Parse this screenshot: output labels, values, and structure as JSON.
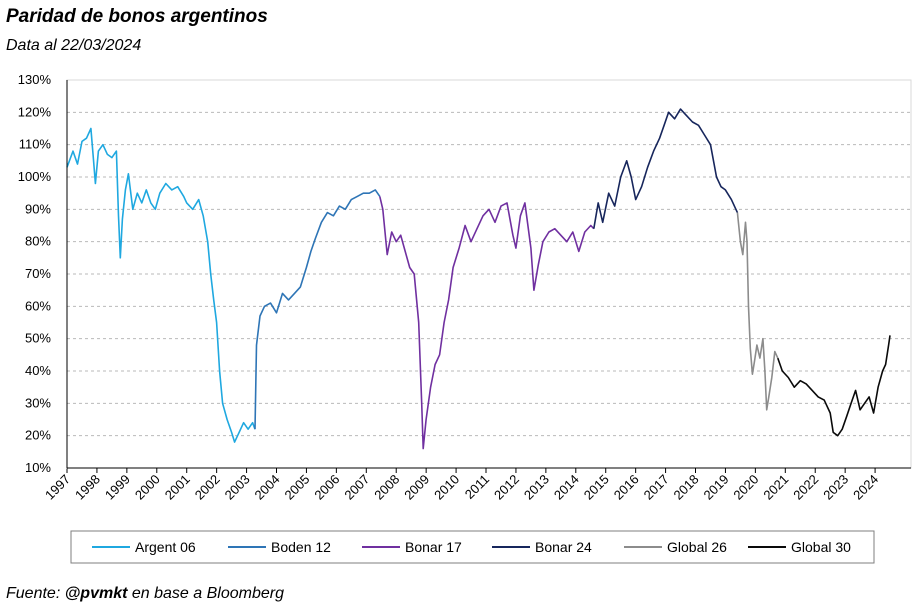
{
  "title": "Paridad de bonos argentinos",
  "subtitle": "Data al 22/03/2024",
  "footer": {
    "prefix": "Fuente: ",
    "handle": "@pvmkt",
    "suffix": "  en base a Bloomberg"
  },
  "chart_data": {
    "type": "line",
    "y_unit": "%",
    "ylim": [
      10,
      130
    ],
    "y_ticks": [
      "10%",
      "20%",
      "30%",
      "40%",
      "50%",
      "60%",
      "70%",
      "80%",
      "90%",
      "100%",
      "110%",
      "120%",
      "130%"
    ],
    "x_ticks": [
      "1997",
      "1998",
      "1999",
      "2000",
      "2001",
      "2002",
      "2003",
      "2004",
      "2005",
      "2006",
      "2007",
      "2008",
      "2009",
      "2010",
      "2011",
      "2012",
      "2013",
      "2014",
      "2015",
      "2016",
      "2017",
      "2018",
      "2019",
      "2020",
      "2021",
      "2022",
      "2023",
      "2024"
    ],
    "xlim": [
      1997.0,
      2025.2
    ],
    "grid": "horizontal-dashed",
    "legend": "bottom",
    "series": [
      {
        "name": "Argent 06",
        "color": "#1fa8e0",
        "points": [
          [
            1997.0,
            103
          ],
          [
            1997.2,
            108
          ],
          [
            1997.35,
            104
          ],
          [
            1997.5,
            111
          ],
          [
            1997.65,
            112
          ],
          [
            1997.8,
            115
          ],
          [
            1997.88,
            106
          ],
          [
            1997.95,
            98
          ],
          [
            1998.05,
            108
          ],
          [
            1998.2,
            110
          ],
          [
            1998.35,
            107
          ],
          [
            1998.5,
            106
          ],
          [
            1998.65,
            108
          ],
          [
            1998.72,
            88
          ],
          [
            1998.78,
            75
          ],
          [
            1998.85,
            87
          ],
          [
            1998.95,
            96
          ],
          [
            1999.05,
            101
          ],
          [
            1999.2,
            90
          ],
          [
            1999.35,
            95
          ],
          [
            1999.5,
            92
          ],
          [
            1999.65,
            96
          ],
          [
            1999.8,
            92
          ],
          [
            1999.95,
            90
          ],
          [
            2000.1,
            95
          ],
          [
            2000.3,
            98
          ],
          [
            2000.5,
            96
          ],
          [
            2000.7,
            97
          ],
          [
            2000.9,
            94
          ],
          [
            2001.0,
            92
          ],
          [
            2001.2,
            90
          ],
          [
            2001.4,
            93
          ],
          [
            2001.55,
            88
          ],
          [
            2001.7,
            80
          ],
          [
            2001.8,
            70
          ],
          [
            2001.9,
            62
          ],
          [
            2002.0,
            55
          ],
          [
            2002.1,
            40
          ],
          [
            2002.2,
            30
          ],
          [
            2002.35,
            25
          ],
          [
            2002.5,
            21
          ],
          [
            2002.6,
            18
          ],
          [
            2002.75,
            21
          ],
          [
            2002.9,
            24
          ],
          [
            2003.05,
            22
          ],
          [
            2003.2,
            24
          ],
          [
            2003.28,
            22
          ]
        ]
      },
      {
        "name": "Boden 12",
        "color": "#2e75b6",
        "points": [
          [
            2003.28,
            22
          ],
          [
            2003.33,
            48
          ],
          [
            2003.45,
            57
          ],
          [
            2003.6,
            60
          ],
          [
            2003.8,
            61
          ],
          [
            2004.0,
            58
          ],
          [
            2004.2,
            64
          ],
          [
            2004.4,
            62
          ],
          [
            2004.6,
            64
          ],
          [
            2004.8,
            66
          ],
          [
            2005.0,
            72
          ],
          [
            2005.15,
            77
          ],
          [
            2005.3,
            81
          ],
          [
            2005.5,
            86
          ],
          [
            2005.7,
            89
          ],
          [
            2005.9,
            88
          ],
          [
            2006.1,
            91
          ],
          [
            2006.3,
            90
          ],
          [
            2006.5,
            93
          ],
          [
            2006.7,
            94
          ],
          [
            2006.9,
            95
          ],
          [
            2007.1,
            95
          ],
          [
            2007.3,
            96
          ],
          [
            2007.45,
            94
          ]
        ]
      },
      {
        "name": "Bonar 17",
        "color": "#7030a0",
        "points": [
          [
            2007.45,
            94
          ],
          [
            2007.55,
            90
          ],
          [
            2007.7,
            76
          ],
          [
            2007.85,
            83
          ],
          [
            2008.0,
            80
          ],
          [
            2008.15,
            82
          ],
          [
            2008.3,
            77
          ],
          [
            2008.45,
            72
          ],
          [
            2008.6,
            70
          ],
          [
            2008.75,
            55
          ],
          [
            2008.85,
            30
          ],
          [
            2008.9,
            16
          ],
          [
            2009.0,
            25
          ],
          [
            2009.15,
            35
          ],
          [
            2009.3,
            42
          ],
          [
            2009.45,
            45
          ],
          [
            2009.6,
            55
          ],
          [
            2009.75,
            62
          ],
          [
            2009.9,
            72
          ],
          [
            2010.1,
            78
          ],
          [
            2010.3,
            85
          ],
          [
            2010.5,
            80
          ],
          [
            2010.7,
            84
          ],
          [
            2010.9,
            88
          ],
          [
            2011.1,
            90
          ],
          [
            2011.3,
            86
          ],
          [
            2011.5,
            91
          ],
          [
            2011.7,
            92
          ],
          [
            2011.9,
            82
          ],
          [
            2012.0,
            78
          ],
          [
            2012.15,
            88
          ],
          [
            2012.3,
            92
          ],
          [
            2012.5,
            78
          ],
          [
            2012.6,
            65
          ],
          [
            2012.75,
            73
          ],
          [
            2012.9,
            80
          ],
          [
            2013.1,
            83
          ],
          [
            2013.3,
            84
          ],
          [
            2013.5,
            82
          ],
          [
            2013.7,
            80
          ],
          [
            2013.9,
            83
          ],
          [
            2014.1,
            77
          ],
          [
            2014.3,
            83
          ],
          [
            2014.5,
            85
          ],
          [
            2014.6,
            84
          ]
        ]
      },
      {
        "name": "Bonar 24",
        "color": "#17265c",
        "points": [
          [
            2014.6,
            84
          ],
          [
            2014.75,
            92
          ],
          [
            2014.9,
            86
          ],
          [
            2015.1,
            95
          ],
          [
            2015.3,
            91
          ],
          [
            2015.5,
            100
          ],
          [
            2015.7,
            105
          ],
          [
            2015.85,
            100
          ],
          [
            2016.0,
            93
          ],
          [
            2016.2,
            97
          ],
          [
            2016.4,
            103
          ],
          [
            2016.6,
            108
          ],
          [
            2016.8,
            112
          ],
          [
            2016.95,
            116
          ],
          [
            2017.1,
            120
          ],
          [
            2017.3,
            118
          ],
          [
            2017.5,
            121
          ],
          [
            2017.7,
            119
          ],
          [
            2017.9,
            117
          ],
          [
            2018.1,
            116
          ],
          [
            2018.3,
            113
          ],
          [
            2018.5,
            110
          ],
          [
            2018.7,
            100
          ],
          [
            2018.85,
            97
          ],
          [
            2019.0,
            96
          ],
          [
            2019.2,
            93
          ],
          [
            2019.4,
            89
          ]
        ]
      },
      {
        "name": "Global 26",
        "color": "#8c8c8c",
        "points": [
          [
            2019.4,
            89
          ],
          [
            2019.5,
            80
          ],
          [
            2019.58,
            76
          ],
          [
            2019.67,
            86
          ],
          [
            2019.72,
            80
          ],
          [
            2019.77,
            60
          ],
          [
            2019.83,
            47
          ],
          [
            2019.9,
            39
          ],
          [
            2019.97,
            43
          ],
          [
            2020.05,
            48
          ],
          [
            2020.15,
            44
          ],
          [
            2020.25,
            50
          ],
          [
            2020.32,
            40
          ],
          [
            2020.38,
            28
          ],
          [
            2020.45,
            32
          ],
          [
            2020.55,
            38
          ],
          [
            2020.65,
            46
          ],
          [
            2020.75,
            44
          ]
        ]
      },
      {
        "name": "Global 30",
        "color": "#0a0a0a",
        "points": [
          [
            2020.75,
            44
          ],
          [
            2020.9,
            40
          ],
          [
            2021.1,
            38
          ],
          [
            2021.3,
            35
          ],
          [
            2021.5,
            37
          ],
          [
            2021.7,
            36
          ],
          [
            2021.9,
            34
          ],
          [
            2022.1,
            32
          ],
          [
            2022.3,
            31
          ],
          [
            2022.5,
            27
          ],
          [
            2022.6,
            21
          ],
          [
            2022.75,
            20
          ],
          [
            2022.9,
            22
          ],
          [
            2023.05,
            26
          ],
          [
            2023.2,
            30
          ],
          [
            2023.35,
            34
          ],
          [
            2023.5,
            28
          ],
          [
            2023.65,
            30
          ],
          [
            2023.8,
            32
          ],
          [
            2023.95,
            27
          ],
          [
            2024.1,
            35
          ],
          [
            2024.25,
            40
          ],
          [
            2024.35,
            42
          ],
          [
            2024.45,
            48
          ],
          [
            2024.5,
            51
          ]
        ]
      }
    ]
  }
}
